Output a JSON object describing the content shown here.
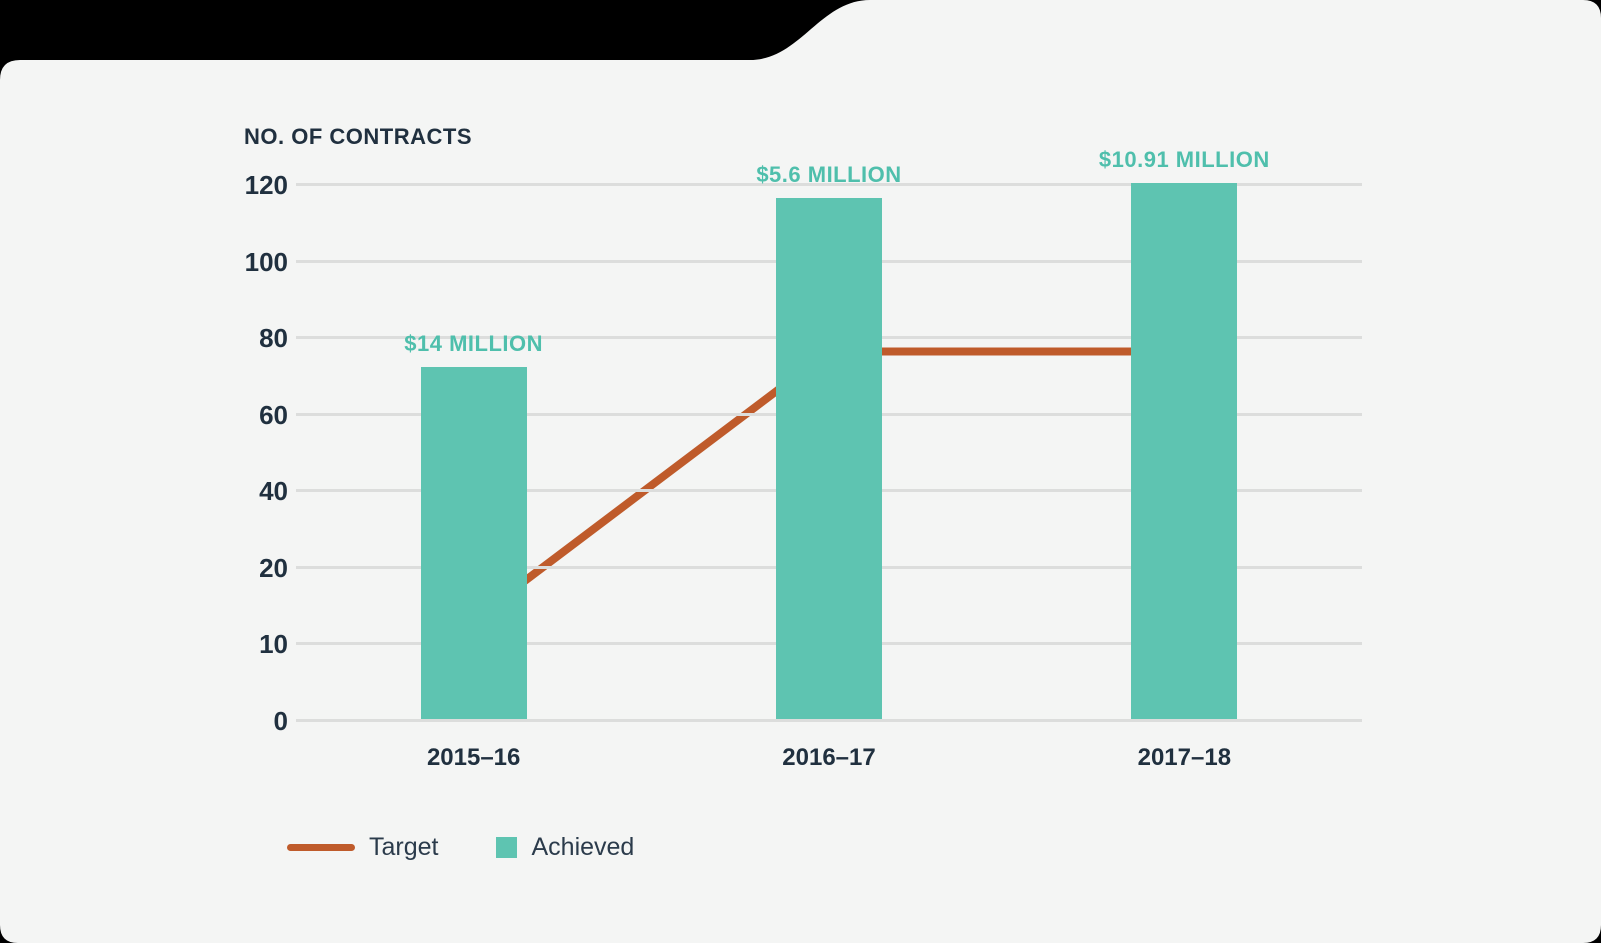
{
  "colors": {
    "background": "#000000",
    "card": "#f4f5f4",
    "gridline": "#dcdddc",
    "axis_text": "#20303f",
    "legend_text": "#2b3b4b"
  },
  "chart_data": {
    "type": "bar",
    "title": "NO. OF CONTRACTS",
    "ylabel": "NO. OF CONTRACTS",
    "xlabel": "",
    "categories": [
      "2015–16",
      "2016–17",
      "2017–18"
    ],
    "y_ticks": [
      0,
      10,
      20,
      40,
      60,
      80,
      100,
      120
    ],
    "grid": true,
    "legend_position": "bottom-left",
    "series": [
      {
        "name": "Target",
        "type": "line",
        "color": "#bf5b2b",
        "values": [
          13,
          76,
          76
        ]
      },
      {
        "name": "Achieved",
        "type": "bar",
        "color": "#5ec4b1",
        "values": [
          72,
          116,
          120
        ],
        "annotations": [
          "$14 MILLION",
          "$5.6 MILLION",
          "$10.91 MILLION"
        ],
        "annotation_color": "#4fbfac"
      }
    ]
  }
}
